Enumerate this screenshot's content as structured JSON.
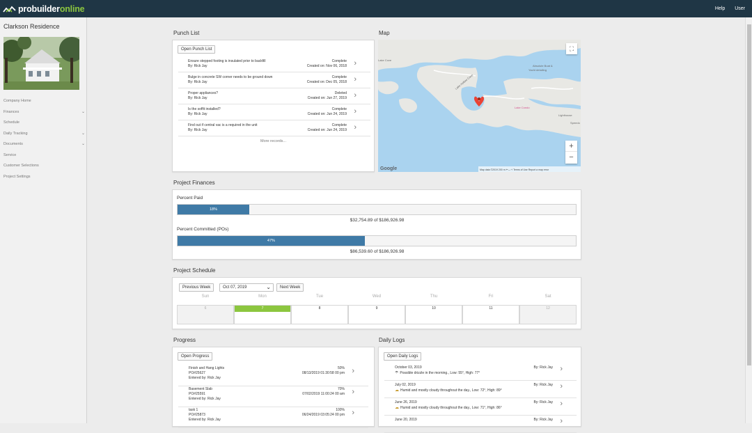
{
  "app": {
    "logo_pre": "probuilder",
    "logo_post": "online",
    "help": "Help",
    "user": "User"
  },
  "sidebar": {
    "project_title": "Clarkson Residence",
    "items": [
      {
        "label": "Company Home",
        "chevron": ""
      },
      {
        "label": "Finances",
        "chevron": "⌄"
      },
      {
        "label": "Schedule",
        "chevron": ""
      },
      {
        "label": "Daily Tracking",
        "chevron": "⌄"
      },
      {
        "label": "Documents",
        "chevron": "⌄"
      },
      {
        "label": "Service",
        "chevron": ""
      },
      {
        "label": "Customer Selections",
        "chevron": ""
      },
      {
        "label": "Project Settings",
        "chevron": ""
      }
    ]
  },
  "punch_list": {
    "title": "Punch List",
    "open_button": "Open Punch List",
    "more": "More records...",
    "items": [
      {
        "desc": "Ensure stepped footing is insulated prior to backfill",
        "by": "By: Rick Jay",
        "status": "Complete",
        "created": "Created on: Nov 06, 2018"
      },
      {
        "desc": "Bulge in concrete SW corner needs to be ground down",
        "by": "By: Rick Jay",
        "status": "Complete",
        "created": "Created on: Dec 05, 2018"
      },
      {
        "desc": "Proper appliances?",
        "by": "By: Rick Jay",
        "status": "Deleted",
        "created": "Created on: Jun 27, 2019"
      },
      {
        "desc": "Is the soffit installed?",
        "by": "By: Rick Jay",
        "status": "Complete",
        "created": "Created on: Jun 24, 2019"
      },
      {
        "desc": "Find out if central vac is a required in the unit",
        "by": "By: Rick Jay",
        "status": "Complete",
        "created": "Created on: Jun 24, 2019"
      }
    ]
  },
  "map": {
    "title": "Map",
    "labels": {
      "cove": "Lake Cove",
      "lake_hollow": "Lake Hollow Cove",
      "absolute": "Absolute Boat &",
      "yacht": "Yacht detailing",
      "lake_condo": "Lake Condo",
      "lighthouse": "Lighthouse",
      "speed": "Speedo",
      "google": "Google",
      "footer": "Map data ©2019   200 m ⊢—⊣   Terms of Use   Report a map error"
    }
  },
  "finances": {
    "title": "Project Finances",
    "percent_paid_label": "Percent Paid",
    "percent_paid": 18,
    "percent_paid_text": "18%",
    "paid_amount": "$32,754.89 of $186,926.98",
    "percent_committed_label": "Percent Committed (POs)",
    "percent_committed": 47,
    "percent_committed_text": "47%",
    "committed_amount": "$86,539.60 of $186,926.98"
  },
  "schedule": {
    "title": "Project Schedule",
    "prev": "Previous Week",
    "date": "Oct 07, 2019",
    "next": "Next Week",
    "days": [
      "Sun",
      "Mon",
      "Tue",
      "Wed",
      "Thu",
      "Fri",
      "Sat"
    ],
    "dates": [
      "6",
      "7",
      "8",
      "9",
      "10",
      "11",
      "12"
    ]
  },
  "progress": {
    "title": "Progress",
    "open_button": "Open Progress",
    "items": [
      {
        "name": "Finish and Hang Lights",
        "po": "PO#25627",
        "by": "Entered by: Rick Jay",
        "pct": "50%",
        "date": "08/13/2019 01:30:58 00 pm"
      },
      {
        "name": "Basement Slab",
        "po": "PO#25591",
        "by": "Entered by: Rick Jay",
        "pct": "70%",
        "date": "07/02/2019 11:00:24 00 am"
      },
      {
        "name": "task 1",
        "po": "PO#25873",
        "by": "Entered by: Rick Jay",
        "pct": "100%",
        "date": "06/24/2019 03:05:24 00 pm"
      }
    ]
  },
  "daily_logs": {
    "title": "Daily Logs",
    "open_button": "Open Daily Logs",
    "items": [
      {
        "date": "October 03, 2019",
        "weather": "Possible drizzle in the morning., Low: 55°, High: 77°",
        "by": "By: Rick Jay",
        "icon": "rain-icon"
      },
      {
        "date": "July 02, 2019",
        "weather": "Humid and mostly cloudy throughout the day., Low: 72°, High: 89°",
        "by": "By: Rick Jay",
        "icon": "cloud-icon"
      },
      {
        "date": "June 26, 2019",
        "weather": "Humid and mostly cloudy throughout the day., Low: 71°, High: 86°",
        "by": "By: Rick Jay",
        "icon": "cloud-icon"
      },
      {
        "date": "June 20, 2019",
        "weather": "",
        "by": "By: Rick Jay",
        "icon": ""
      }
    ]
  },
  "colors": {
    "topbar": "#1f3645",
    "accent": "#8cc63f",
    "bar": "#3f7aa6",
    "today": "#8cc63f"
  }
}
